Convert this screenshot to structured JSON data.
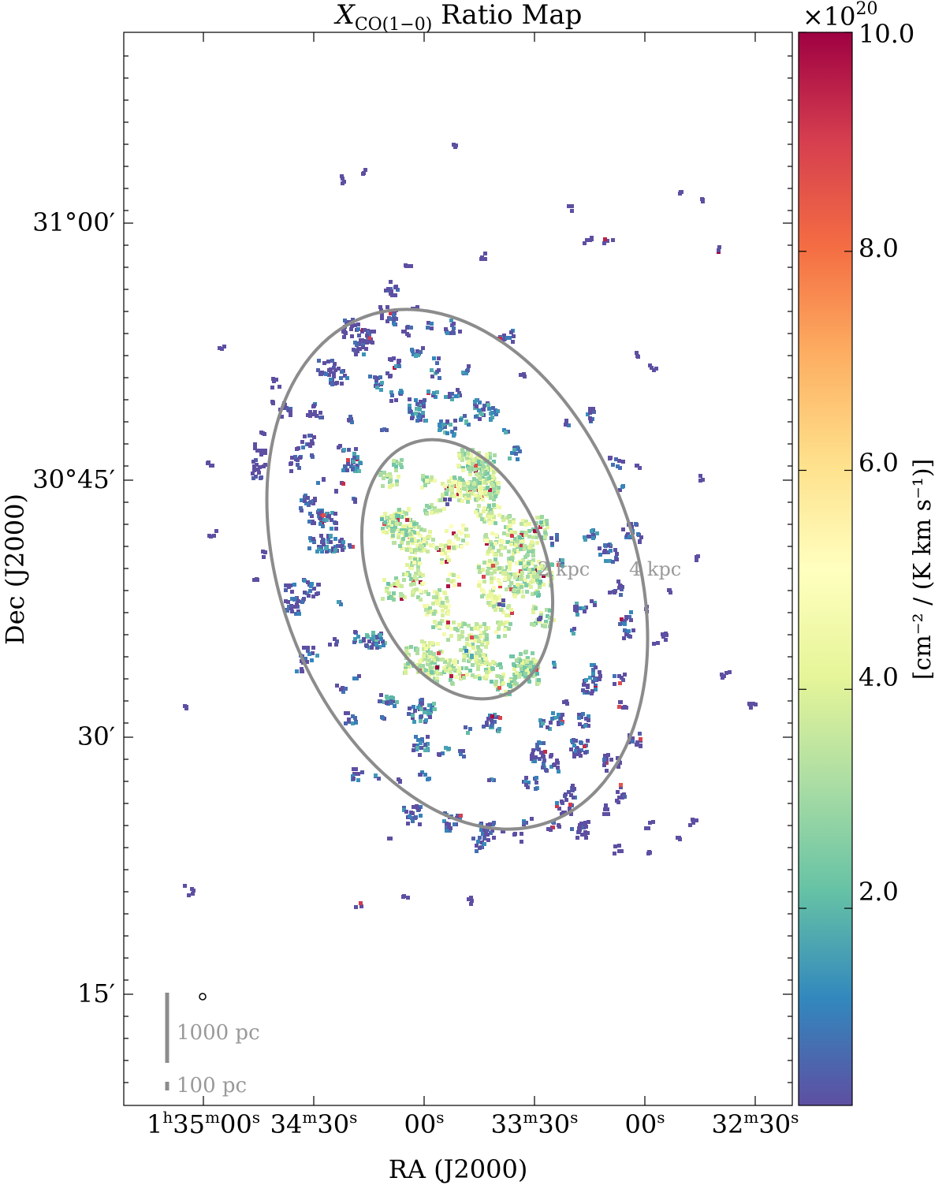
{
  "chart_data": {
    "type": "heatmap",
    "title_main": "X",
    "title_sub": "CO(1−0)",
    "title_rest": " Ratio Map",
    "xlabel": "RA (J2000)",
    "ylabel": "Dec (J2000)",
    "x_ticks": [
      {
        "pre": "1",
        "h": "h",
        "a": "35",
        "m": "m",
        "b": "00",
        "s": "s"
      },
      {
        "pre": "",
        "h": "",
        "a": "34",
        "m": "m",
        "b": "30",
        "s": "s"
      },
      {
        "pre": "",
        "h": "",
        "a": "",
        "m": "",
        "b": "00",
        "s": "s"
      },
      {
        "pre": "",
        "h": "",
        "a": "33",
        "m": "m",
        "b": "30",
        "s": "s"
      },
      {
        "pre": "",
        "h": "",
        "a": "",
        "m": "",
        "b": "00",
        "s": "s"
      },
      {
        "pre": "",
        "h": "",
        "a": "32",
        "m": "m",
        "b": "30",
        "s": "s"
      }
    ],
    "y_ticks": [
      "31°00′",
      "30°45′",
      "30′",
      "15′"
    ],
    "colorbar": {
      "colormap": "Spectral_r",
      "range": [
        0.2,
        10.0
      ],
      "multiplier_base": "×10",
      "multiplier_exp": "20",
      "tick_labels": [
        "10.0",
        "8.0",
        "6.0",
        "4.0",
        "2.0"
      ],
      "tick_values": [
        10.0,
        8.0,
        6.0,
        4.0,
        2.0
      ],
      "label": "[cm⁻² / (K km s⁻¹)]"
    },
    "annotations": {
      "inner_ring": "2 kpc",
      "outer_ring": "4 kpc",
      "scalebar_large": "1000 pc",
      "scalebar_small": "100 pc"
    },
    "colors": {
      "ellipse": "#8c8c8c",
      "annotation_text": "#999999",
      "cmap_stops": [
        "#5e4fa2",
        "#3288bd",
        "#66c2a5",
        "#abdda4",
        "#e6f598",
        "#ffffbf",
        "#fee08b",
        "#fdae61",
        "#f46d43",
        "#d53e4f",
        "#9e0142"
      ]
    }
  }
}
